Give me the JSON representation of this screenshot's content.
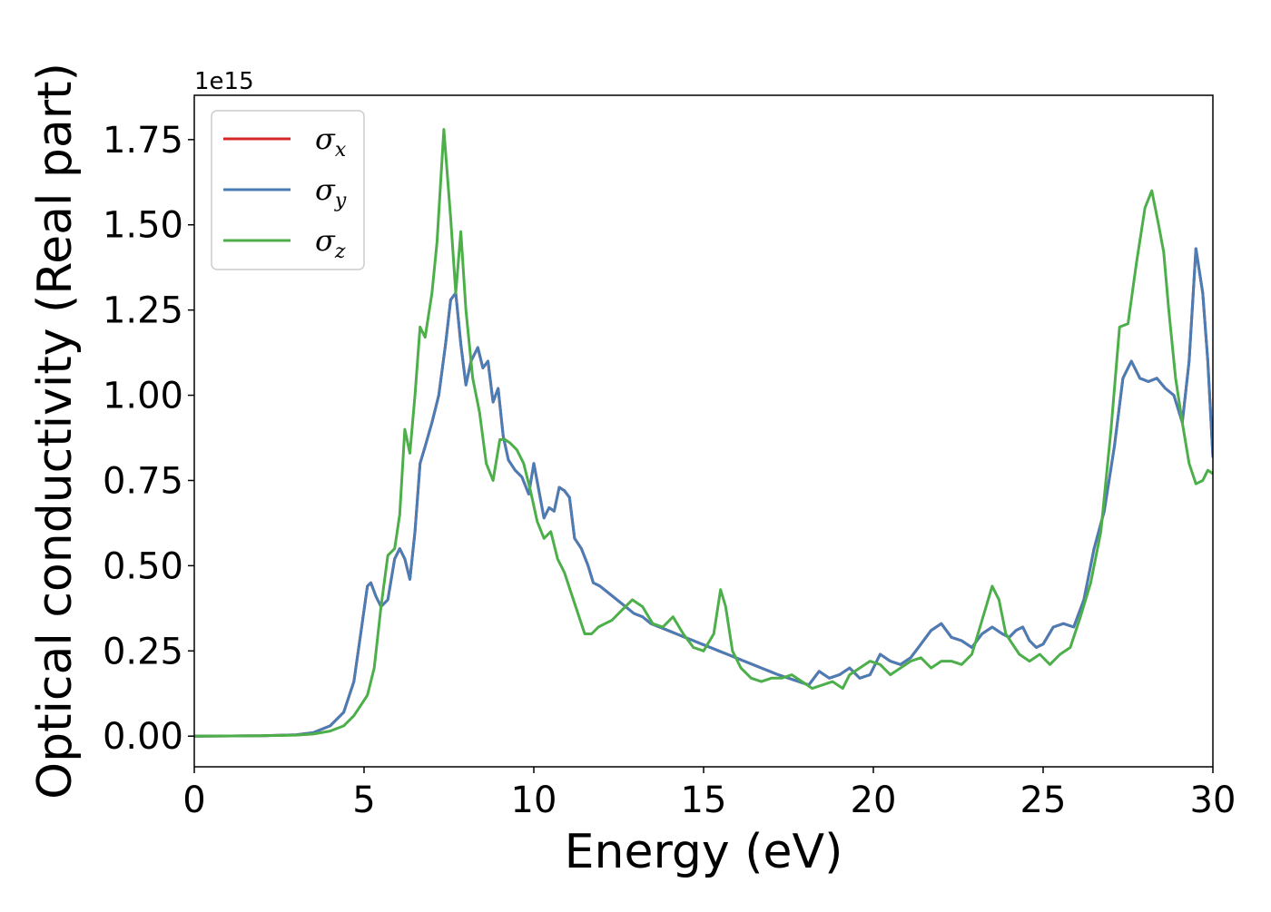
{
  "chart_data": {
    "type": "line",
    "xlabel": "Energy (eV)",
    "ylabel": "Optical conductivity (Real part)",
    "y_offset_text": "1e15",
    "xlim": [
      0,
      30
    ],
    "ylim": [
      -0.09,
      1.88
    ],
    "x_ticks": [
      0,
      5,
      10,
      15,
      20,
      25,
      30
    ],
    "x_tick_labels": [
      "0",
      "5",
      "10",
      "15",
      "20",
      "25",
      "30"
    ],
    "y_ticks": [
      0.0,
      0.25,
      0.5,
      0.75,
      1.0,
      1.25,
      1.5,
      1.75
    ],
    "y_tick_labels": [
      "0.00",
      "0.25",
      "0.50",
      "0.75",
      "1.00",
      "1.25",
      "1.50",
      "1.75"
    ],
    "grid": false,
    "legend_position": "top-left",
    "series": [
      {
        "name": "σ",
        "subscript": "x",
        "color": "#d62728",
        "x": [
          0,
          2,
          3,
          3.5,
          4,
          4.4,
          4.7,
          4.9,
          5.1,
          5.2,
          5.35,
          5.5,
          5.7,
          5.9,
          6.05,
          6.2,
          6.35,
          6.5,
          6.65,
          6.8,
          7.0,
          7.2,
          7.4,
          7.55,
          7.7,
          7.85,
          8.0,
          8.15,
          8.35,
          8.5,
          8.65,
          8.8,
          8.95,
          9.1,
          9.25,
          9.45,
          9.65,
          9.85,
          10.0,
          10.15,
          10.3,
          10.45,
          10.6,
          10.75,
          10.9,
          11.05,
          11.2,
          11.4,
          11.6,
          11.75,
          11.95,
          12.2,
          12.45,
          12.7,
          12.95,
          13.2,
          13.45,
          13.7,
          13.95,
          14.2,
          14.45,
          14.7,
          14.95,
          15.2,
          15.45,
          15.7,
          15.95,
          16.2,
          16.45,
          16.7,
          16.95,
          17.2,
          17.5,
          17.8,
          18.1,
          18.4,
          18.7,
          19.0,
          19.3,
          19.6,
          19.9,
          20.2,
          20.5,
          20.8,
          21.1,
          21.4,
          21.7,
          22.0,
          22.3,
          22.6,
          22.9,
          23.2,
          23.5,
          23.8,
          24.0,
          24.2,
          24.4,
          24.6,
          24.8,
          25.0,
          25.3,
          25.6,
          25.9,
          26.2,
          26.5,
          26.8,
          27.1,
          27.35,
          27.6,
          27.85,
          28.1,
          28.35,
          28.6,
          28.85,
          29.1,
          29.3,
          29.5,
          29.7,
          29.85,
          30.0
        ],
        "values": [
          0,
          0.001,
          0.004,
          0.01,
          0.03,
          0.07,
          0.16,
          0.3,
          0.44,
          0.45,
          0.41,
          0.38,
          0.4,
          0.52,
          0.55,
          0.52,
          0.46,
          0.6,
          0.8,
          0.85,
          0.92,
          1.0,
          1.15,
          1.28,
          1.3,
          1.15,
          1.03,
          1.1,
          1.14,
          1.08,
          1.1,
          0.98,
          1.02,
          0.88,
          0.81,
          0.78,
          0.76,
          0.71,
          0.8,
          0.72,
          0.64,
          0.67,
          0.66,
          0.73,
          0.72,
          0.7,
          0.58,
          0.55,
          0.5,
          0.45,
          0.44,
          0.42,
          0.4,
          0.38,
          0.36,
          0.35,
          0.33,
          0.32,
          0.31,
          0.3,
          0.29,
          0.28,
          0.27,
          0.26,
          0.25,
          0.24,
          0.23,
          0.22,
          0.21,
          0.2,
          0.19,
          0.18,
          0.17,
          0.16,
          0.15,
          0.19,
          0.17,
          0.18,
          0.2,
          0.17,
          0.18,
          0.24,
          0.22,
          0.21,
          0.23,
          0.27,
          0.31,
          0.33,
          0.29,
          0.28,
          0.26,
          0.3,
          0.32,
          0.3,
          0.29,
          0.31,
          0.32,
          0.28,
          0.26,
          0.27,
          0.32,
          0.33,
          0.32,
          0.4,
          0.55,
          0.66,
          0.85,
          1.05,
          1.1,
          1.05,
          1.04,
          1.05,
          1.02,
          1.0,
          0.92,
          1.1,
          1.43,
          1.3,
          1.1,
          0.82
        ]
      },
      {
        "name": "σ",
        "subscript": "y",
        "color": "#4a7db5",
        "x": [
          0,
          2,
          3,
          3.5,
          4,
          4.4,
          4.7,
          4.9,
          5.1,
          5.2,
          5.35,
          5.5,
          5.7,
          5.9,
          6.05,
          6.2,
          6.35,
          6.5,
          6.65,
          6.8,
          7.0,
          7.2,
          7.4,
          7.55,
          7.7,
          7.85,
          8.0,
          8.15,
          8.35,
          8.5,
          8.65,
          8.8,
          8.95,
          9.1,
          9.25,
          9.45,
          9.65,
          9.85,
          10.0,
          10.15,
          10.3,
          10.45,
          10.6,
          10.75,
          10.9,
          11.05,
          11.2,
          11.4,
          11.6,
          11.75,
          11.95,
          12.2,
          12.45,
          12.7,
          12.95,
          13.2,
          13.45,
          13.7,
          13.95,
          14.2,
          14.45,
          14.7,
          14.95,
          15.2,
          15.45,
          15.7,
          15.95,
          16.2,
          16.45,
          16.7,
          16.95,
          17.2,
          17.5,
          17.8,
          18.1,
          18.4,
          18.7,
          19.0,
          19.3,
          19.6,
          19.9,
          20.2,
          20.5,
          20.8,
          21.1,
          21.4,
          21.7,
          22.0,
          22.3,
          22.6,
          22.9,
          23.2,
          23.5,
          23.8,
          24.0,
          24.2,
          24.4,
          24.6,
          24.8,
          25.0,
          25.3,
          25.6,
          25.9,
          26.2,
          26.5,
          26.8,
          27.1,
          27.35,
          27.6,
          27.85,
          28.1,
          28.35,
          28.6,
          28.85,
          29.1,
          29.3,
          29.5,
          29.7,
          29.85,
          30.0
        ],
        "values": [
          0,
          0.001,
          0.004,
          0.01,
          0.03,
          0.07,
          0.16,
          0.3,
          0.44,
          0.45,
          0.41,
          0.38,
          0.4,
          0.52,
          0.55,
          0.52,
          0.46,
          0.6,
          0.8,
          0.85,
          0.92,
          1.0,
          1.15,
          1.28,
          1.3,
          1.15,
          1.03,
          1.1,
          1.14,
          1.08,
          1.1,
          0.98,
          1.02,
          0.88,
          0.81,
          0.78,
          0.76,
          0.71,
          0.8,
          0.72,
          0.64,
          0.67,
          0.66,
          0.73,
          0.72,
          0.7,
          0.58,
          0.55,
          0.5,
          0.45,
          0.44,
          0.42,
          0.4,
          0.38,
          0.36,
          0.35,
          0.33,
          0.32,
          0.31,
          0.3,
          0.29,
          0.28,
          0.27,
          0.26,
          0.25,
          0.24,
          0.23,
          0.22,
          0.21,
          0.2,
          0.19,
          0.18,
          0.17,
          0.16,
          0.15,
          0.19,
          0.17,
          0.18,
          0.2,
          0.17,
          0.18,
          0.24,
          0.22,
          0.21,
          0.23,
          0.27,
          0.31,
          0.33,
          0.29,
          0.28,
          0.26,
          0.3,
          0.32,
          0.3,
          0.29,
          0.31,
          0.32,
          0.28,
          0.26,
          0.27,
          0.32,
          0.33,
          0.32,
          0.4,
          0.55,
          0.66,
          0.85,
          1.05,
          1.1,
          1.05,
          1.04,
          1.05,
          1.02,
          1.0,
          0.92,
          1.1,
          1.43,
          1.3,
          1.1,
          0.82
        ]
      },
      {
        "name": "σ",
        "subscript": "z",
        "color": "#4daf4a",
        "x": [
          0,
          2,
          3,
          3.5,
          4,
          4.4,
          4.7,
          4.9,
          5.1,
          5.3,
          5.5,
          5.7,
          5.9,
          6.05,
          6.2,
          6.35,
          6.5,
          6.65,
          6.8,
          7.0,
          7.15,
          7.35,
          7.55,
          7.7,
          7.85,
          8.0,
          8.2,
          8.4,
          8.6,
          8.8,
          9.0,
          9.15,
          9.3,
          9.5,
          9.7,
          9.9,
          10.1,
          10.3,
          10.5,
          10.7,
          10.9,
          11.1,
          11.3,
          11.5,
          11.7,
          11.9,
          12.1,
          12.3,
          12.6,
          12.9,
          13.2,
          13.5,
          13.8,
          14.1,
          14.4,
          14.7,
          15.0,
          15.3,
          15.5,
          15.65,
          15.85,
          16.1,
          16.4,
          16.7,
          17.0,
          17.3,
          17.6,
          17.9,
          18.2,
          18.5,
          18.8,
          19.1,
          19.3,
          19.6,
          19.9,
          20.2,
          20.5,
          20.8,
          21.1,
          21.4,
          21.7,
          22.0,
          22.3,
          22.6,
          22.9,
          23.2,
          23.5,
          23.7,
          23.9,
          24.1,
          24.3,
          24.6,
          24.9,
          25.2,
          25.5,
          25.8,
          26.1,
          26.4,
          26.7,
          27.0,
          27.25,
          27.5,
          27.75,
          28.0,
          28.2,
          28.4,
          28.55,
          28.7,
          28.9,
          29.1,
          29.3,
          29.5,
          29.7,
          29.85,
          30.0
        ],
        "values": [
          0,
          0.001,
          0.003,
          0.006,
          0.015,
          0.03,
          0.06,
          0.09,
          0.12,
          0.2,
          0.38,
          0.53,
          0.55,
          0.65,
          0.9,
          0.83,
          1.0,
          1.2,
          1.17,
          1.3,
          1.45,
          1.78,
          1.52,
          1.3,
          1.48,
          1.25,
          1.05,
          0.95,
          0.8,
          0.75,
          0.87,
          0.87,
          0.86,
          0.84,
          0.8,
          0.72,
          0.63,
          0.58,
          0.6,
          0.52,
          0.48,
          0.42,
          0.36,
          0.3,
          0.3,
          0.32,
          0.33,
          0.34,
          0.37,
          0.4,
          0.38,
          0.33,
          0.32,
          0.35,
          0.3,
          0.26,
          0.25,
          0.3,
          0.43,
          0.38,
          0.25,
          0.2,
          0.17,
          0.16,
          0.17,
          0.17,
          0.18,
          0.16,
          0.14,
          0.15,
          0.16,
          0.14,
          0.18,
          0.2,
          0.22,
          0.21,
          0.18,
          0.2,
          0.22,
          0.23,
          0.2,
          0.22,
          0.22,
          0.21,
          0.24,
          0.34,
          0.44,
          0.4,
          0.3,
          0.27,
          0.24,
          0.22,
          0.24,
          0.21,
          0.24,
          0.26,
          0.35,
          0.45,
          0.6,
          0.9,
          1.2,
          1.21,
          1.39,
          1.55,
          1.6,
          1.5,
          1.42,
          1.25,
          1.05,
          0.92,
          0.8,
          0.74,
          0.75,
          0.78,
          0.77
        ]
      }
    ]
  }
}
